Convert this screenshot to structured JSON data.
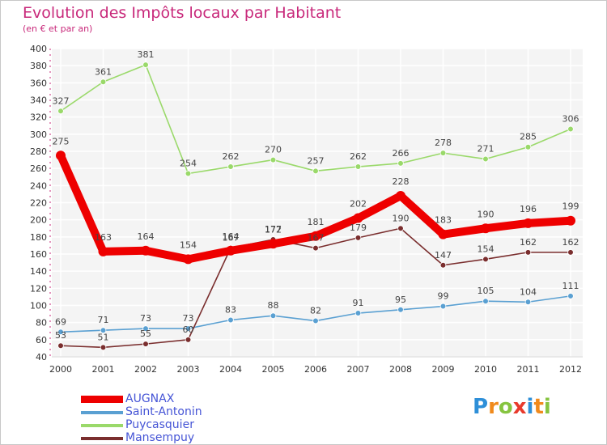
{
  "chart_data": {
    "type": "line",
    "title": "Evolution des Impôts locaux par Habitant",
    "subtitle": "(en € et par an)",
    "categories": [
      "2000",
      "2001",
      "2002",
      "2003",
      "2004",
      "2005",
      "2006",
      "2007",
      "2008",
      "2009",
      "2010",
      "2011",
      "2012"
    ],
    "ylim": [
      40,
      400
    ],
    "yticks": [
      40,
      60,
      80,
      100,
      120,
      140,
      160,
      180,
      200,
      220,
      240,
      260,
      280,
      300,
      320,
      340,
      360,
      380,
      400
    ],
    "grid": true,
    "legend_position": "bottom-left",
    "series": [
      {
        "name": "AUGNAX",
        "color": "#ee0000",
        "values": [
          275,
          163,
          164,
          154,
          164,
          172,
          181,
          202,
          228,
          183,
          190,
          196,
          199
        ]
      },
      {
        "name": "Saint-Antonin",
        "color": "#5aa0d2",
        "values": [
          69,
          71,
          73,
          73,
          83,
          88,
          82,
          91,
          95,
          99,
          105,
          104,
          111
        ]
      },
      {
        "name": "Puycasquier",
        "color": "#9ad96a",
        "values": [
          327,
          361,
          381,
          254,
          262,
          270,
          257,
          262,
          266,
          278,
          271,
          285,
          306
        ]
      },
      {
        "name": "Mansempuy",
        "color": "#7a2e2e",
        "values": [
          53,
          51,
          55,
          60,
          167,
          177,
          167,
          179,
          190,
          147,
          154,
          162,
          162
        ]
      }
    ]
  },
  "logo": {
    "letters": [
      "P",
      "r",
      "o",
      "x",
      "i",
      "t",
      "i"
    ],
    "colors": [
      "#2e8fd8",
      "#f08a1c",
      "#86c440",
      "#e83a2c",
      "#2e8fd8",
      "#f08a1c",
      "#86c440"
    ]
  }
}
